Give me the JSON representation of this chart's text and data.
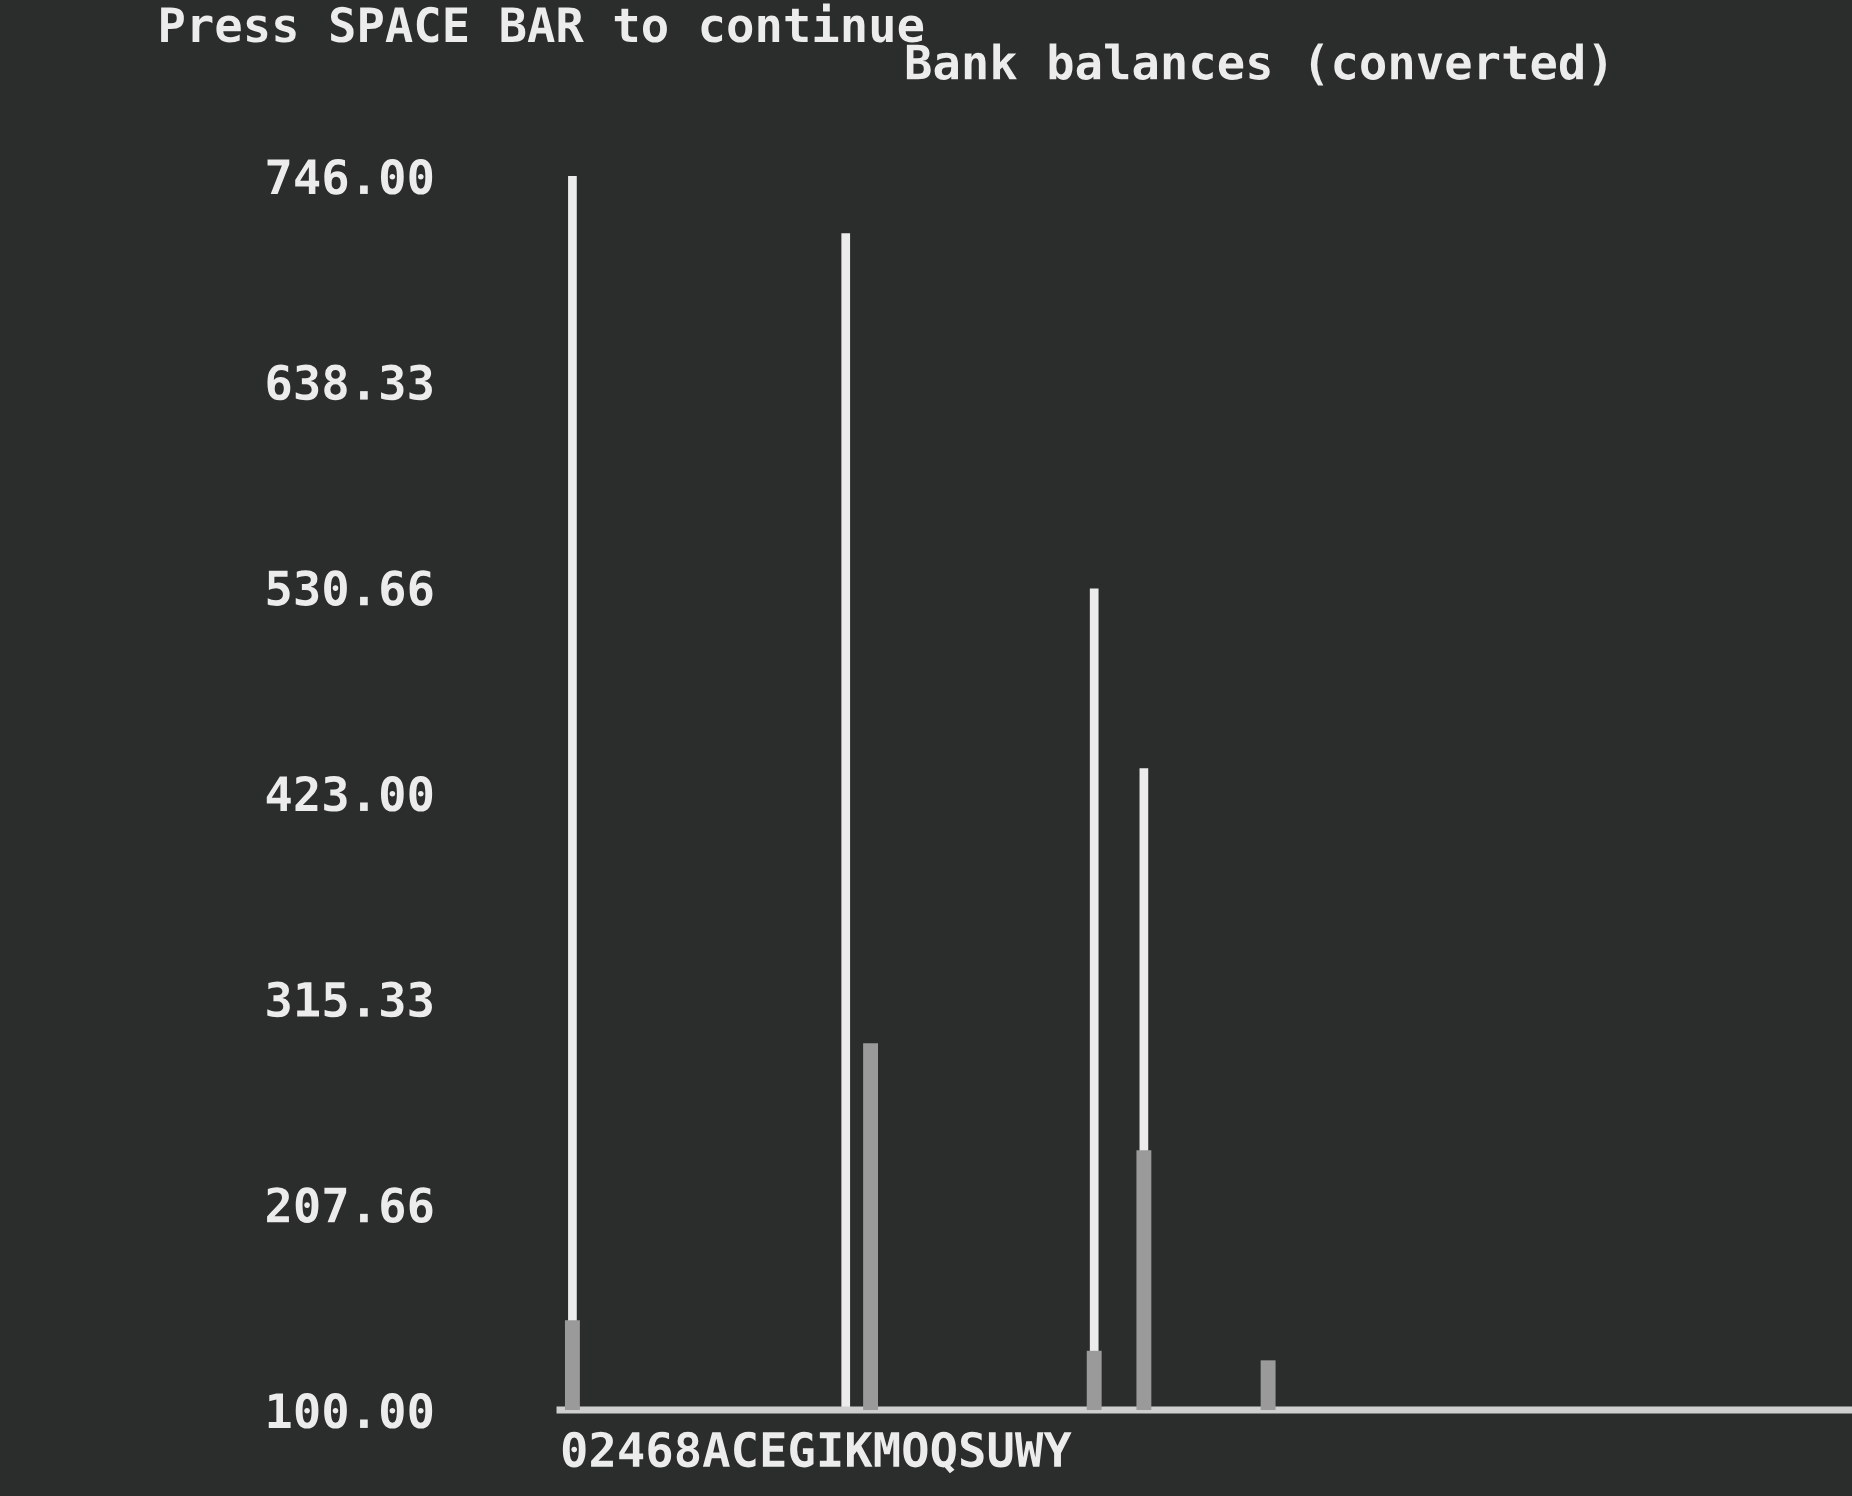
{
  "chart_data": {
    "type": "bar",
    "title": "Bank balances (converted)",
    "annotations": [
      "Press SPACE BAR to continue"
    ],
    "xlabel": "02468ACEGIKMOQSUWY",
    "categories": [
      null,
      null,
      null,
      null,
      null,
      null,
      null,
      null,
      null,
      null,
      null,
      null,
      null,
      null,
      null,
      null,
      null,
      null,
      null,
      null,
      null,
      null,
      null,
      null,
      null,
      null,
      null,
      null,
      null,
      null,
      null,
      null,
      null,
      null,
      null,
      null,
      null,
      null,
      null,
      null,
      null,
      null,
      null,
      null,
      null,
      null,
      null,
      null,
      null,
      null,
      null,
      null
    ],
    "series": [
      {
        "color": "#ececec",
        "values": [
          746,
          null,
          null,
          null,
          null,
          null,
          null,
          null,
          null,
          null,
          null,
          716,
          null,
          null,
          null,
          null,
          null,
          null,
          null,
          null,
          null,
          530,
          null,
          436,
          null,
          null,
          null,
          null,
          null,
          null,
          null,
          null,
          null,
          null,
          null,
          null,
          null,
          null,
          null,
          null,
          null,
          null,
          null,
          null,
          null,
          null,
          null,
          null,
          null,
          null,
          null,
          null
        ]
      },
      {
        "color": "#9a9a9a",
        "values": [
          147,
          null,
          null,
          null,
          null,
          null,
          null,
          null,
          null,
          null,
          null,
          null,
          292,
          null,
          null,
          null,
          null,
          null,
          null,
          null,
          null,
          131,
          null,
          236,
          null,
          null,
          null,
          null,
          126,
          null,
          null,
          null,
          null,
          null,
          null,
          null,
          null,
          null,
          null,
          null,
          null,
          null,
          null,
          null,
          null,
          null,
          null,
          null,
          null,
          null,
          null,
          null
        ]
      }
    ],
    "ylim": [
      100,
      746
    ],
    "yticks": [
      {
        "value": 100,
        "label": "100.00"
      },
      {
        "value": 207.66,
        "label": "207.66"
      },
      {
        "value": 315.33,
        "label": "315.33"
      },
      {
        "value": 423,
        "label": "423.00"
      },
      {
        "value": 530.66,
        "label": "530.66"
      },
      {
        "value": 638.33,
        "label": "638.33"
      },
      {
        "value": 746,
        "label": "746.00"
      }
    ],
    "grid": false,
    "legend": false
  }
}
